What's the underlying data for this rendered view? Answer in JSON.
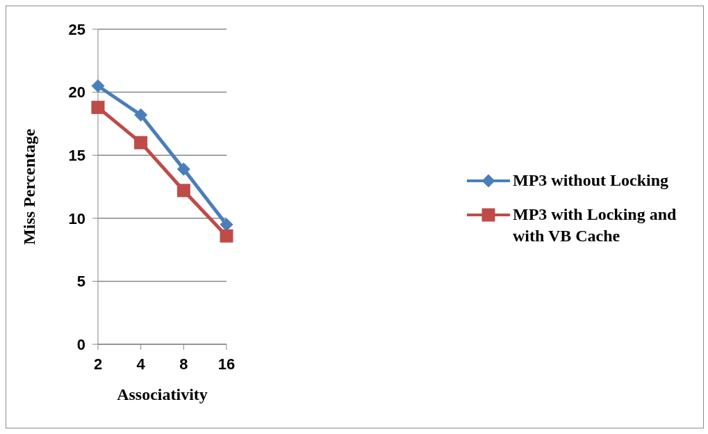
{
  "chart_data": {
    "type": "line",
    "xlabel": "Associativity",
    "ylabel": "Miss Percentage",
    "categories": [
      "2",
      "4",
      "8",
      "16"
    ],
    "series": [
      {
        "name": "MP3 without Locking",
        "color": "#4a7ebb",
        "marker": "diamond",
        "values": [
          20.5,
          18.2,
          13.9,
          9.5
        ]
      },
      {
        "name": "MP3 with Locking and with VB Cache",
        "color": "#be4b48",
        "marker": "square",
        "values": [
          18.8,
          16.0,
          12.2,
          8.6
        ]
      }
    ],
    "ylim": [
      0,
      25
    ],
    "yticks": [
      0,
      5,
      10,
      15,
      20,
      25
    ],
    "grid": "y",
    "legend": "right"
  }
}
